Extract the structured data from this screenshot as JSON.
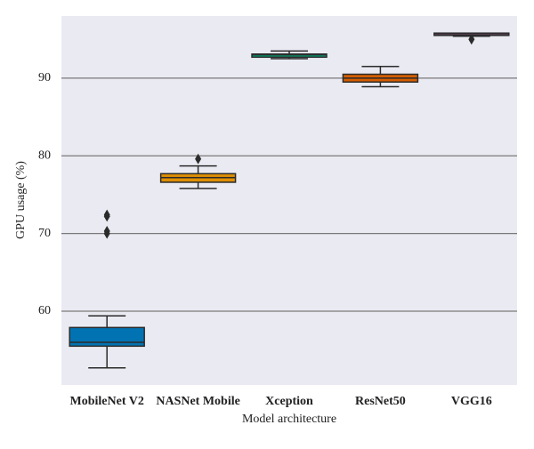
{
  "chart_data": {
    "type": "box",
    "x_label": "Model architecture",
    "y_label": "GPU usage (%)",
    "categories": [
      "MobileNet V2",
      "NASNet Mobile",
      "Xception",
      "ResNet50",
      "VGG16"
    ],
    "colors": [
      "#0173b2",
      "#de8f05",
      "#029e73",
      "#d55e00",
      "#cc78bc"
    ],
    "boxes": [
      {
        "min": 52.7,
        "q1": 55.5,
        "median": 56.0,
        "q3": 57.9,
        "max": 59.4,
        "outliers": [
          72.4,
          72.2,
          70.3,
          70.0
        ]
      },
      {
        "min": 75.8,
        "q1": 76.6,
        "median": 77.2,
        "q3": 77.7,
        "max": 78.7,
        "outliers": [
          79.6
        ]
      },
      {
        "min": 92.5,
        "q1": 92.7,
        "median": 93.0,
        "q3": 93.1,
        "max": 93.5,
        "outliers": []
      },
      {
        "min": 88.9,
        "q1": 89.5,
        "median": 90.0,
        "q3": 90.5,
        "max": 91.5,
        "outliers": []
      },
      {
        "min": 95.4,
        "q1": 95.5,
        "median": 95.6,
        "q3": 95.8,
        "max": 95.8,
        "outliers": [
          95.0
        ]
      }
    ],
    "ylim": [
      50.5,
      98
    ],
    "yticks": [
      60,
      70,
      80,
      90
    ],
    "grid": true
  }
}
